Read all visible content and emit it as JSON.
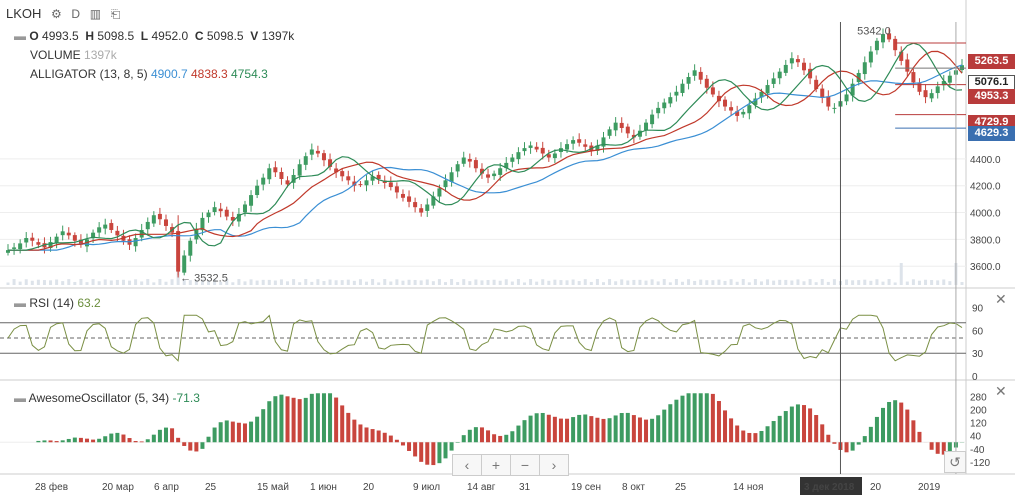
{
  "symbol": "LKOH",
  "header": {
    "icons": [
      "gear-icon",
      "d-label",
      "bar-chart-icon",
      "save-icon"
    ],
    "d_label": "D",
    "ohlcv": {
      "o_label": "O",
      "o": "4993.5",
      "h_label": "H",
      "h": "5098.5",
      "l_label": "L",
      "l": "4952.0",
      "c_label": "C",
      "c": "5098.5",
      "v_label": "V",
      "v": "1397k"
    }
  },
  "volume_legend": {
    "label": "VOLUME",
    "value": "1397k"
  },
  "alligator_legend": {
    "label": "ALLIGATOR (13, 8, 5)",
    "jaw": "4900.7",
    "teeth": "4838.3",
    "lips": "4754.3"
  },
  "rsi_legend": {
    "label": "RSI (14)",
    "value": "63.2"
  },
  "ao_legend": {
    "label": "AwesomeOscillator (5, 34)",
    "value": "-71.3"
  },
  "annotations": {
    "high": "5342.0",
    "low": "← 3532.5"
  },
  "price_tags": [
    {
      "value": "5263.5",
      "color": "#b83b3b"
    },
    {
      "value": "5076.1",
      "color": "#ffffff"
    },
    {
      "value": "4953.3",
      "color": "#b83b3b"
    },
    {
      "value": "4729.9",
      "color": "#b83b3b"
    },
    {
      "value": "4629.3",
      "color": "#3a6fb0"
    }
  ],
  "x_labels": [
    "28 фев",
    "20 мар",
    "6 апр",
    "25",
    "15 май",
    "1 июн",
    "20",
    "9 июл",
    "14 авг",
    "31",
    "19 сен",
    "8 окт",
    "25",
    "14 ноя",
    "3 дек 2018",
    "20",
    "2019"
  ],
  "nav_buttons": [
    "‹",
    "+",
    "−",
    "›"
  ],
  "chart_data": {
    "type": "line",
    "price_axis": {
      "ticks": [
        3600,
        3800,
        4000,
        4200,
        4400
      ],
      "tick_labels": [
        "3600.0",
        "3800.0",
        "4000.0",
        "4200.0",
        "4400.0"
      ],
      "ylim": [
        3460,
        5420
      ]
    },
    "rsi_axis": {
      "ticks": [
        0,
        30,
        60,
        90
      ],
      "levels": [
        30,
        70
      ],
      "ylim": [
        0,
        100
      ]
    },
    "ao_axis": {
      "ticks": [
        -120,
        -40,
        40,
        120,
        200,
        280
      ],
      "tick_labels": [
        "-120",
        "-40",
        "40",
        "120",
        "200",
        "280"
      ],
      "ylim": [
        -170,
        320
      ]
    },
    "close": [
      3720,
      3740,
      3770,
      3810,
      3790,
      3760,
      3740,
      3780,
      3820,
      3860,
      3830,
      3790,
      3760,
      3800,
      3850,
      3890,
      3910,
      3870,
      3830,
      3790,
      3760,
      3810,
      3870,
      3930,
      3980,
      3950,
      3900,
      3850,
      3560,
      3680,
      3790,
      3880,
      3960,
      4000,
      4040,
      4010,
      3970,
      3940,
      3990,
      4060,
      4130,
      4200,
      4260,
      4330,
      4300,
      4250,
      4210,
      4280,
      4360,
      4420,
      4470,
      4440,
      4390,
      4340,
      4300,
      4270,
      4240,
      4200,
      4210,
      4240,
      4270,
      4250,
      4220,
      4190,
      4150,
      4110,
      4080,
      4040,
      4000,
      4060,
      4120,
      4180,
      4240,
      4300,
      4360,
      4410,
      4380,
      4330,
      4290,
      4260,
      4290,
      4330,
      4370,
      4410,
      4450,
      4480,
      4500,
      4470,
      4440,
      4410,
      4440,
      4480,
      4510,
      4540,
      4520,
      4490,
      4460,
      4500,
      4560,
      4620,
      4670,
      4630,
      4590,
      4560,
      4610,
      4670,
      4730,
      4780,
      4820,
      4860,
      4900,
      4960,
      5010,
      5060,
      4990,
      4930,
      4880,
      4830,
      4790,
      4760,
      4720,
      4750,
      4800,
      4850,
      4900,
      4950,
      5000,
      5050,
      5100,
      5150,
      5120,
      5060,
      5000,
      4920,
      4860,
      4790,
      4780,
      4830,
      4880,
      4960,
      5040,
      5120,
      5200,
      5280,
      5330,
      5290,
      5210,
      5130,
      5050,
      4970,
      4900,
      4860,
      4890,
      4940,
      4980,
      5020,
      5060,
      5098
    ],
    "volume_spikes": {
      "index": [
        28,
        147,
        156
      ],
      "label": "VOLUME"
    },
    "alligator": {
      "jaw_period": 13,
      "teeth_period": 8,
      "lips_period": 5,
      "series_colors": {
        "jaw": "#3b8fd4",
        "teeth": "#c0392b",
        "lips": "#2e8b57"
      }
    },
    "rsi_last": 63.2,
    "ao_last": -71.3
  }
}
